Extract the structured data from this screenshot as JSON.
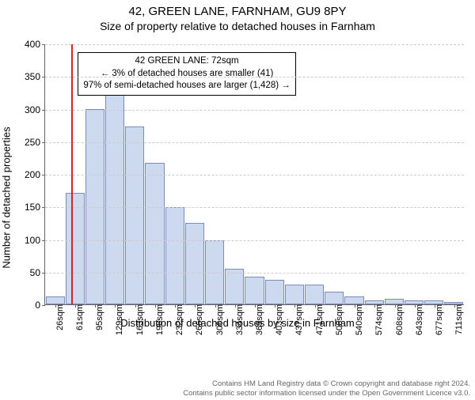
{
  "title_main": "42, GREEN LANE, FARNHAM, GU9 8PY",
  "title_sub": "Size of property relative to detached houses in Farnham",
  "ylabel": "Number of detached properties",
  "xlabel": "Distribution of detached houses by size in Farnham",
  "chart": {
    "type": "histogram",
    "ylim": [
      0,
      400
    ],
    "ytick_step": 50,
    "yticks": [
      0,
      50,
      100,
      150,
      200,
      250,
      300,
      350,
      400
    ],
    "background_color": "#ffffff",
    "grid_color": "#cccccc",
    "bar_fill": "#cdd9ef",
    "bar_border": "#7a8db8",
    "ref_line_color": "#d22",
    "ref_bin_index": 1,
    "x_categories": [
      "26sqm",
      "61sqm",
      "95sqm",
      "129sqm",
      "163sqm",
      "198sqm",
      "232sqm",
      "266sqm",
      "300sqm",
      "334sqm",
      "369sqm",
      "403sqm",
      "437sqm",
      "471sqm",
      "506sqm",
      "540sqm",
      "574sqm",
      "608sqm",
      "643sqm",
      "677sqm",
      "711sqm"
    ],
    "values": [
      12,
      172,
      300,
      337,
      274,
      218,
      150,
      125,
      98,
      55,
      42,
      38,
      30,
      30,
      20,
      12,
      6,
      8,
      6,
      6,
      4
    ],
    "title_fontsize": 15,
    "subtitle_fontsize": 14,
    "label_fontsize": 13,
    "tick_fontsize": 12,
    "xtick_fontsize": 11
  },
  "info_box": {
    "line1": "42 GREEN LANE: 72sqm",
    "line2": "← 3% of detached houses are smaller (41)",
    "line3": "97% of semi-detached houses are larger (1,428) →"
  },
  "footer": {
    "line1": "Contains HM Land Registry data © Crown copyright and database right 2024.",
    "line2": "Contains public sector information licensed under the Open Government Licence v3.0."
  }
}
